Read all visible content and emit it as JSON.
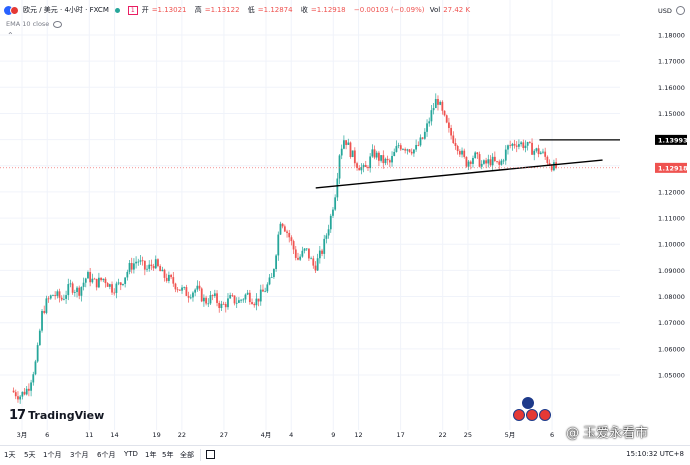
{
  "legend": {
    "symbol": "欧元 / 美元 · 4小时 · FXCM",
    "open_label": "开",
    "open": "=1.13021",
    "high_label": "高",
    "high": "=1.13122",
    "low_label": "低",
    "low": "=1.12874",
    "close_label": "收",
    "close": "=1.12918",
    "change": "−0.00103 (−0.09%)",
    "vol_label": "Vol",
    "vol": "27.42 K",
    "badge": "1",
    "indicator": "EMA 10 close"
  },
  "axis": {
    "currency": "USD"
  },
  "toolbar": {
    "timeframes": [
      "1天",
      "5天",
      "1个月",
      "3个月",
      "6个月",
      "YTD",
      "1年",
      "5年",
      "全部"
    ],
    "clock": "15:10:32 UTC+8"
  },
  "branding": {
    "logo_text": "TradingView",
    "watermark": "@ 玉爱永看市"
  },
  "colors": {
    "up": "#26a69a",
    "down": "#ef5350",
    "trendline": "#000000",
    "current_price_label": "#ef5350",
    "level_label": "#000000"
  },
  "chart_data": {
    "type": "candlestick",
    "title": "欧元 / 美元 · 4小时 · FXCM",
    "ylabel": "USD",
    "ylim": [
      1.04,
      1.185
    ],
    "y_ticks": [
      1.05,
      1.06,
      1.07,
      1.08,
      1.09,
      1.1,
      1.11,
      1.12,
      1.13,
      1.14,
      1.15,
      1.16,
      1.17,
      1.18
    ],
    "y_tick_labels": [
      "1.05000",
      "1.06000",
      "1.07000",
      "1.08000",
      "1.09000",
      "1.10000",
      "1.11000",
      "1.12000",
      "1.13000",
      "1.14000",
      "1.15000",
      "1.16000",
      "1.17000",
      "1.18000"
    ],
    "x_ticks": [
      {
        "label": "3月",
        "day": 0
      },
      {
        "label": "6",
        "day": 3
      },
      {
        "label": "11",
        "day": 8
      },
      {
        "label": "14",
        "day": 11
      },
      {
        "label": "19",
        "day": 16
      },
      {
        "label": "22",
        "day": 19
      },
      {
        "label": "27",
        "day": 24
      },
      {
        "label": "4月",
        "day": 29
      },
      {
        "label": "4",
        "day": 32
      },
      {
        "label": "9",
        "day": 37
      },
      {
        "label": "12",
        "day": 40
      },
      {
        "label": "17",
        "day": 45
      },
      {
        "label": "22",
        "day": 50
      },
      {
        "label": "25",
        "day": 53
      },
      {
        "label": "5月",
        "day": 58
      },
      {
        "label": "6",
        "day": 63
      }
    ],
    "x_day_range": [
      -1.2,
      69.5
    ],
    "price_path": [
      [
        -1.0,
        1.044
      ],
      [
        0.0,
        1.042
      ],
      [
        1.0,
        1.045
      ],
      [
        2.0,
        1.056
      ],
      [
        2.6,
        1.073
      ],
      [
        3.2,
        1.078
      ],
      [
        4.0,
        1.081
      ],
      [
        5.0,
        1.079
      ],
      [
        6.0,
        1.084
      ],
      [
        7.0,
        1.082
      ],
      [
        8.0,
        1.088
      ],
      [
        9.0,
        1.085
      ],
      [
        10.0,
        1.087
      ],
      [
        11.0,
        1.083
      ],
      [
        12.0,
        1.085
      ],
      [
        13.0,
        1.091
      ],
      [
        14.0,
        1.094
      ],
      [
        15.0,
        1.09
      ],
      [
        16.0,
        1.093
      ],
      [
        17.0,
        1.088
      ],
      [
        18.0,
        1.086
      ],
      [
        19.0,
        1.083
      ],
      [
        20.0,
        1.081
      ],
      [
        21.0,
        1.083
      ],
      [
        22.0,
        1.078
      ],
      [
        23.0,
        1.08
      ],
      [
        24.0,
        1.076
      ],
      [
        25.0,
        1.079
      ],
      [
        26.0,
        1.078
      ],
      [
        27.0,
        1.081
      ],
      [
        28.0,
        1.078
      ],
      [
        29.0,
        1.082
      ],
      [
        30.0,
        1.087
      ],
      [
        31.0,
        1.11
      ],
      [
        32.0,
        1.103
      ],
      [
        33.0,
        1.094
      ],
      [
        34.0,
        1.098
      ],
      [
        35.0,
        1.091
      ],
      [
        36.0,
        1.098
      ],
      [
        37.0,
        1.111
      ],
      [
        37.5,
        1.12
      ],
      [
        38.0,
        1.135
      ],
      [
        38.6,
        1.141
      ],
      [
        39.2,
        1.136
      ],
      [
        40.0,
        1.131
      ],
      [
        41.0,
        1.128
      ],
      [
        42.0,
        1.135
      ],
      [
        43.0,
        1.132
      ],
      [
        44.0,
        1.131
      ],
      [
        45.0,
        1.138
      ],
      [
        46.0,
        1.137
      ],
      [
        47.0,
        1.136
      ],
      [
        48.0,
        1.141
      ],
      [
        49.0,
        1.151
      ],
      [
        49.6,
        1.156
      ],
      [
        50.2,
        1.15
      ],
      [
        51.0,
        1.143
      ],
      [
        52.0,
        1.138
      ],
      [
        53.0,
        1.131
      ],
      [
        54.0,
        1.134
      ],
      [
        55.0,
        1.13
      ],
      [
        56.0,
        1.132
      ],
      [
        57.0,
        1.13
      ],
      [
        58.0,
        1.137
      ],
      [
        59.0,
        1.139
      ],
      [
        60.0,
        1.138
      ],
      [
        61.0,
        1.136
      ],
      [
        62.0,
        1.135
      ],
      [
        63.0,
        1.131
      ],
      [
        63.6,
        1.129
      ]
    ],
    "trendline": {
      "start": [
        38.0,
        1.1223
      ],
      "end": [
        69.0,
        1.1322
      ]
    },
    "horizontal_level": {
      "value": 1.1399,
      "label": "1.13993",
      "from_day": 61.5
    },
    "current_price": {
      "value": 1.1292,
      "label": "1.12918"
    }
  }
}
